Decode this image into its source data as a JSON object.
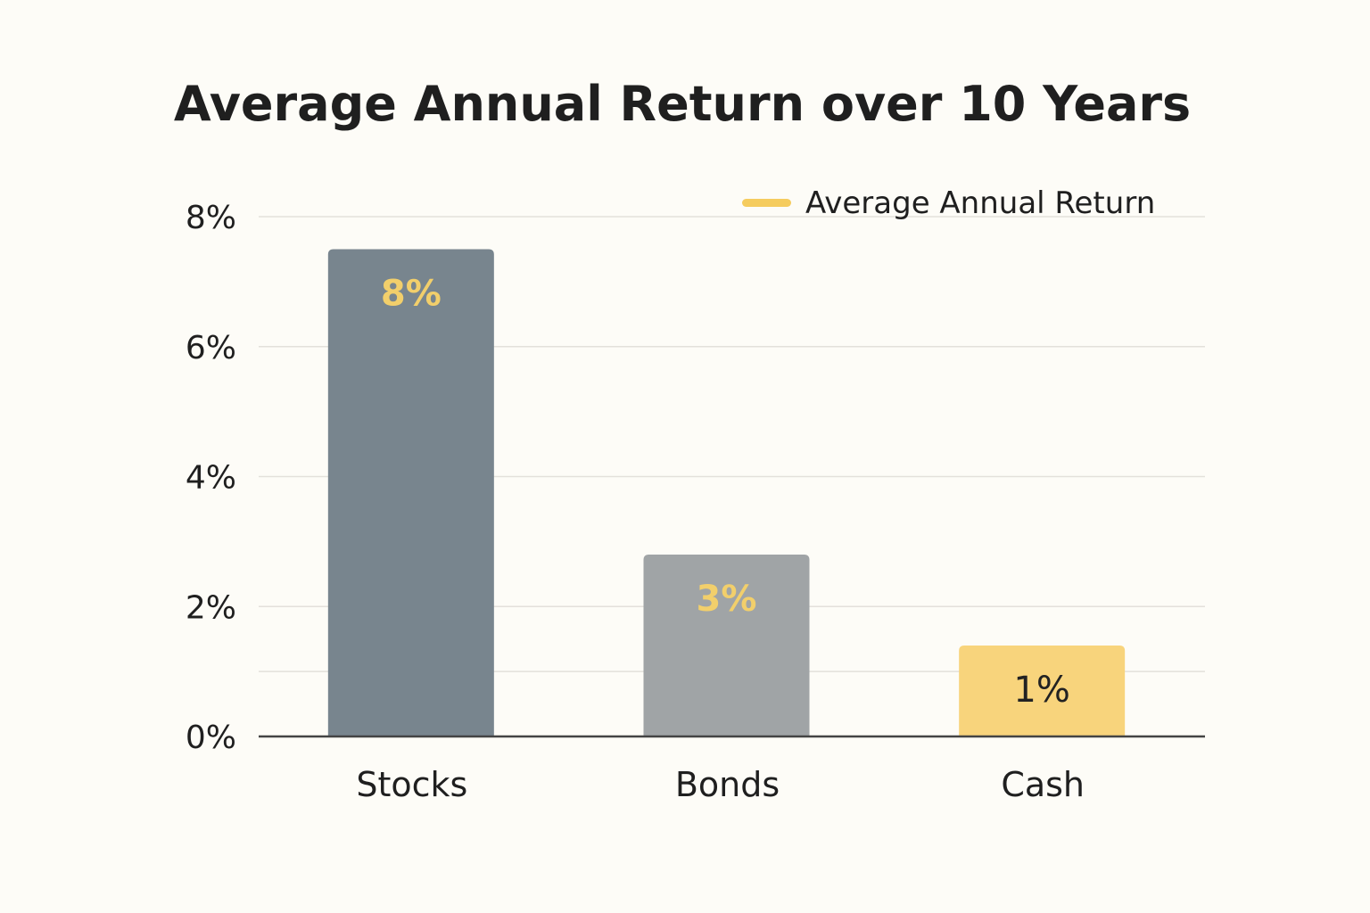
{
  "chart_data": {
    "type": "bar",
    "title": "Average Annual Return over 10 Years",
    "xlabel": "",
    "ylabel": "",
    "categories": [
      "Stocks",
      "Bonds",
      "Cash"
    ],
    "series": [
      {
        "name": "Average Annual Return",
        "values": [
          7.5,
          2.8,
          1.4
        ]
      }
    ],
    "data_labels": [
      "8%",
      "3%",
      "1%"
    ],
    "ylim": [
      0,
      8
    ],
    "y_ticks": [
      {
        "value": 0,
        "label": "0%"
      },
      {
        "value": 2,
        "label": "2%"
      },
      {
        "value": 4,
        "label": "4%"
      },
      {
        "value": 6,
        "label": "6%"
      },
      {
        "value": 8,
        "label": "8%"
      }
    ],
    "gridlines": [
      2,
      4,
      6,
      8,
      1
    ],
    "grid": true,
    "legend_position": "top-right",
    "colors": {
      "bars": [
        "#78858e",
        "#a0a4a6",
        "#f8d47c"
      ],
      "data_labels": [
        "#f2cf6b",
        "#f2cf6b",
        "#222222"
      ],
      "legend_swatch": "#f5cc5e",
      "grid": "#e3e1db",
      "axis": "#444444"
    }
  }
}
